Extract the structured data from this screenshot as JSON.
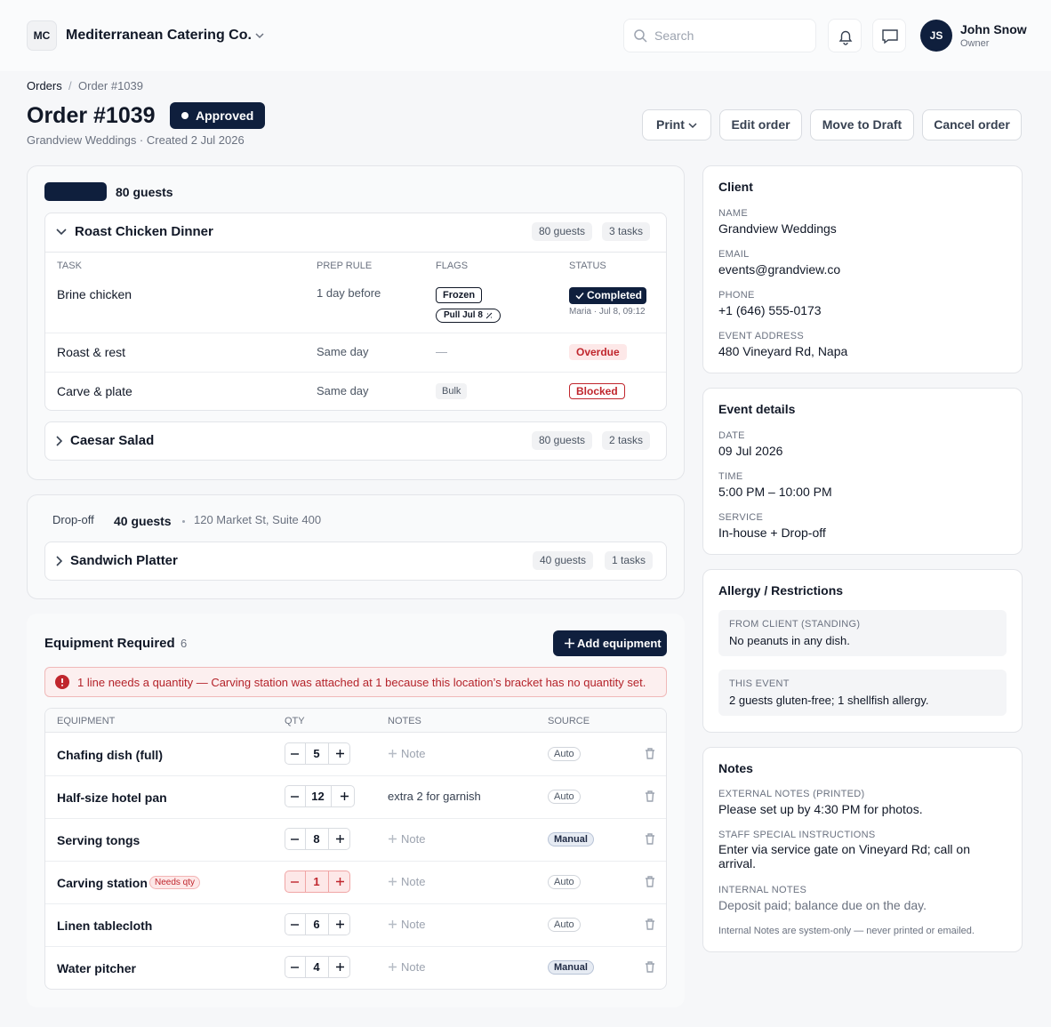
{
  "header": {
    "logo": "MC",
    "company": "Mediterranean Catering Co.",
    "search_placeholder": "Search",
    "user": {
      "initials": "JS",
      "name": "John Snow",
      "role": "Owner"
    }
  },
  "breadcrumb": [
    "Orders",
    "Order #1039"
  ],
  "order": {
    "title": "Order #1039",
    "status": "Approved",
    "subtitle": "Grandview Weddings · Created 2 Jul 2026",
    "actions": [
      "Print",
      "Edit order",
      "Move to Draft",
      "Cancel order"
    ]
  },
  "groups": [
    {
      "guests": "80 guests",
      "menus": [
        {
          "name": "Roast Chicken Dinner",
          "guests": "80 guests",
          "tasks": "3 tasks",
          "columns": [
            "TASK",
            "PREP RULE",
            "FLAGS",
            "STATUS"
          ],
          "rows": [
            {
              "task": "Brine chicken",
              "prep_rule": "1 day before",
              "flags": [
                "Frozen",
                "Pull Jul 8"
              ],
              "status": "Completed",
              "status_note": "Maria · Jul 8, 09:12"
            },
            {
              "task": "Roast & rest",
              "prep_rule": "Same day",
              "flags": [
                "—"
              ],
              "status": "Overdue"
            },
            {
              "task": "Carve & plate",
              "prep_rule": "Same day",
              "flags": [
                "Bulk"
              ],
              "status": "Blocked"
            }
          ]
        },
        {
          "name": "Caesar Salad",
          "guests": "80 guests",
          "tasks": "2 tasks"
        }
      ]
    },
    {
      "label": "Drop-off",
      "guests": "40 guests",
      "address": "120 Market St, Suite 400",
      "menus": [
        {
          "name": "Sandwich Platter",
          "guests": "40 guests",
          "tasks": "1 tasks"
        }
      ]
    }
  ],
  "equipment": {
    "title": "Equipment Required",
    "count": 6,
    "add": "Add equipment",
    "alert": "1 line needs a quantity — Carving station was attached at 1 because this location’s bracket has no quantity set.",
    "columns": [
      "EQUIPMENT",
      "QTY",
      "NOTES",
      "SOURCE"
    ],
    "rows": [
      {
        "name": "Chafing dish (full)",
        "qty": 5,
        "notes": "Note",
        "source": "Auto"
      },
      {
        "name": "Half-size hotel pan",
        "qty": 12,
        "notes": "extra 2 for garnish",
        "source": "Auto"
      },
      {
        "name": "Serving tongs",
        "qty": 8,
        "notes": "Note",
        "source": "Manual"
      },
      {
        "name": "Carving station",
        "badge": "Needs qty",
        "qty": 1,
        "notes": "Note",
        "source": "Auto"
      },
      {
        "name": "Linen tablecloth",
        "qty": 6,
        "notes": "Note",
        "source": "Auto"
      },
      {
        "name": "Water pitcher",
        "qty": 4,
        "notes": "Note",
        "source": "Manual"
      }
    ]
  },
  "client": {
    "title": "Client",
    "fields": [
      {
        "label": "NAME",
        "value": "Grandview Weddings"
      },
      {
        "label": "EMAIL",
        "value": "events@grandview.co"
      },
      {
        "label": "PHONE",
        "value": "+1 (646) 555-0173"
      },
      {
        "label": "EVENT ADDRESS",
        "value": "480 Vineyard Rd, Napa"
      }
    ]
  },
  "event": {
    "title": "Event details",
    "fields": [
      {
        "label": "DATE",
        "value": "09 Jul 2026"
      },
      {
        "label": "TIME",
        "value": "5:00 PM – 10:00 PM"
      },
      {
        "label": "SERVICE",
        "value": "In-house + Drop-off"
      }
    ]
  },
  "allergy": {
    "title": "Allergy / Restrictions",
    "items": [
      {
        "label": "FROM CLIENT (STANDING)",
        "value": "No peanuts in any dish."
      },
      {
        "label": "THIS EVENT",
        "value": "2 guests gluten-free; 1 shellfish allergy."
      }
    ]
  },
  "notes": {
    "title": "Notes",
    "fields": [
      {
        "label": "EXTERNAL NOTES (PRINTED)",
        "value": "Please set up by 4:30 PM for photos."
      },
      {
        "label": "STAFF SPECIAL INSTRUCTIONS",
        "value": "Enter via service gate on Vineyard Rd; call on arrival."
      },
      {
        "label": "INTERNAL NOTES",
        "value": "Deposit paid; balance due on the day."
      }
    ],
    "footnote": "Internal Notes are system-only — never printed or emailed."
  }
}
